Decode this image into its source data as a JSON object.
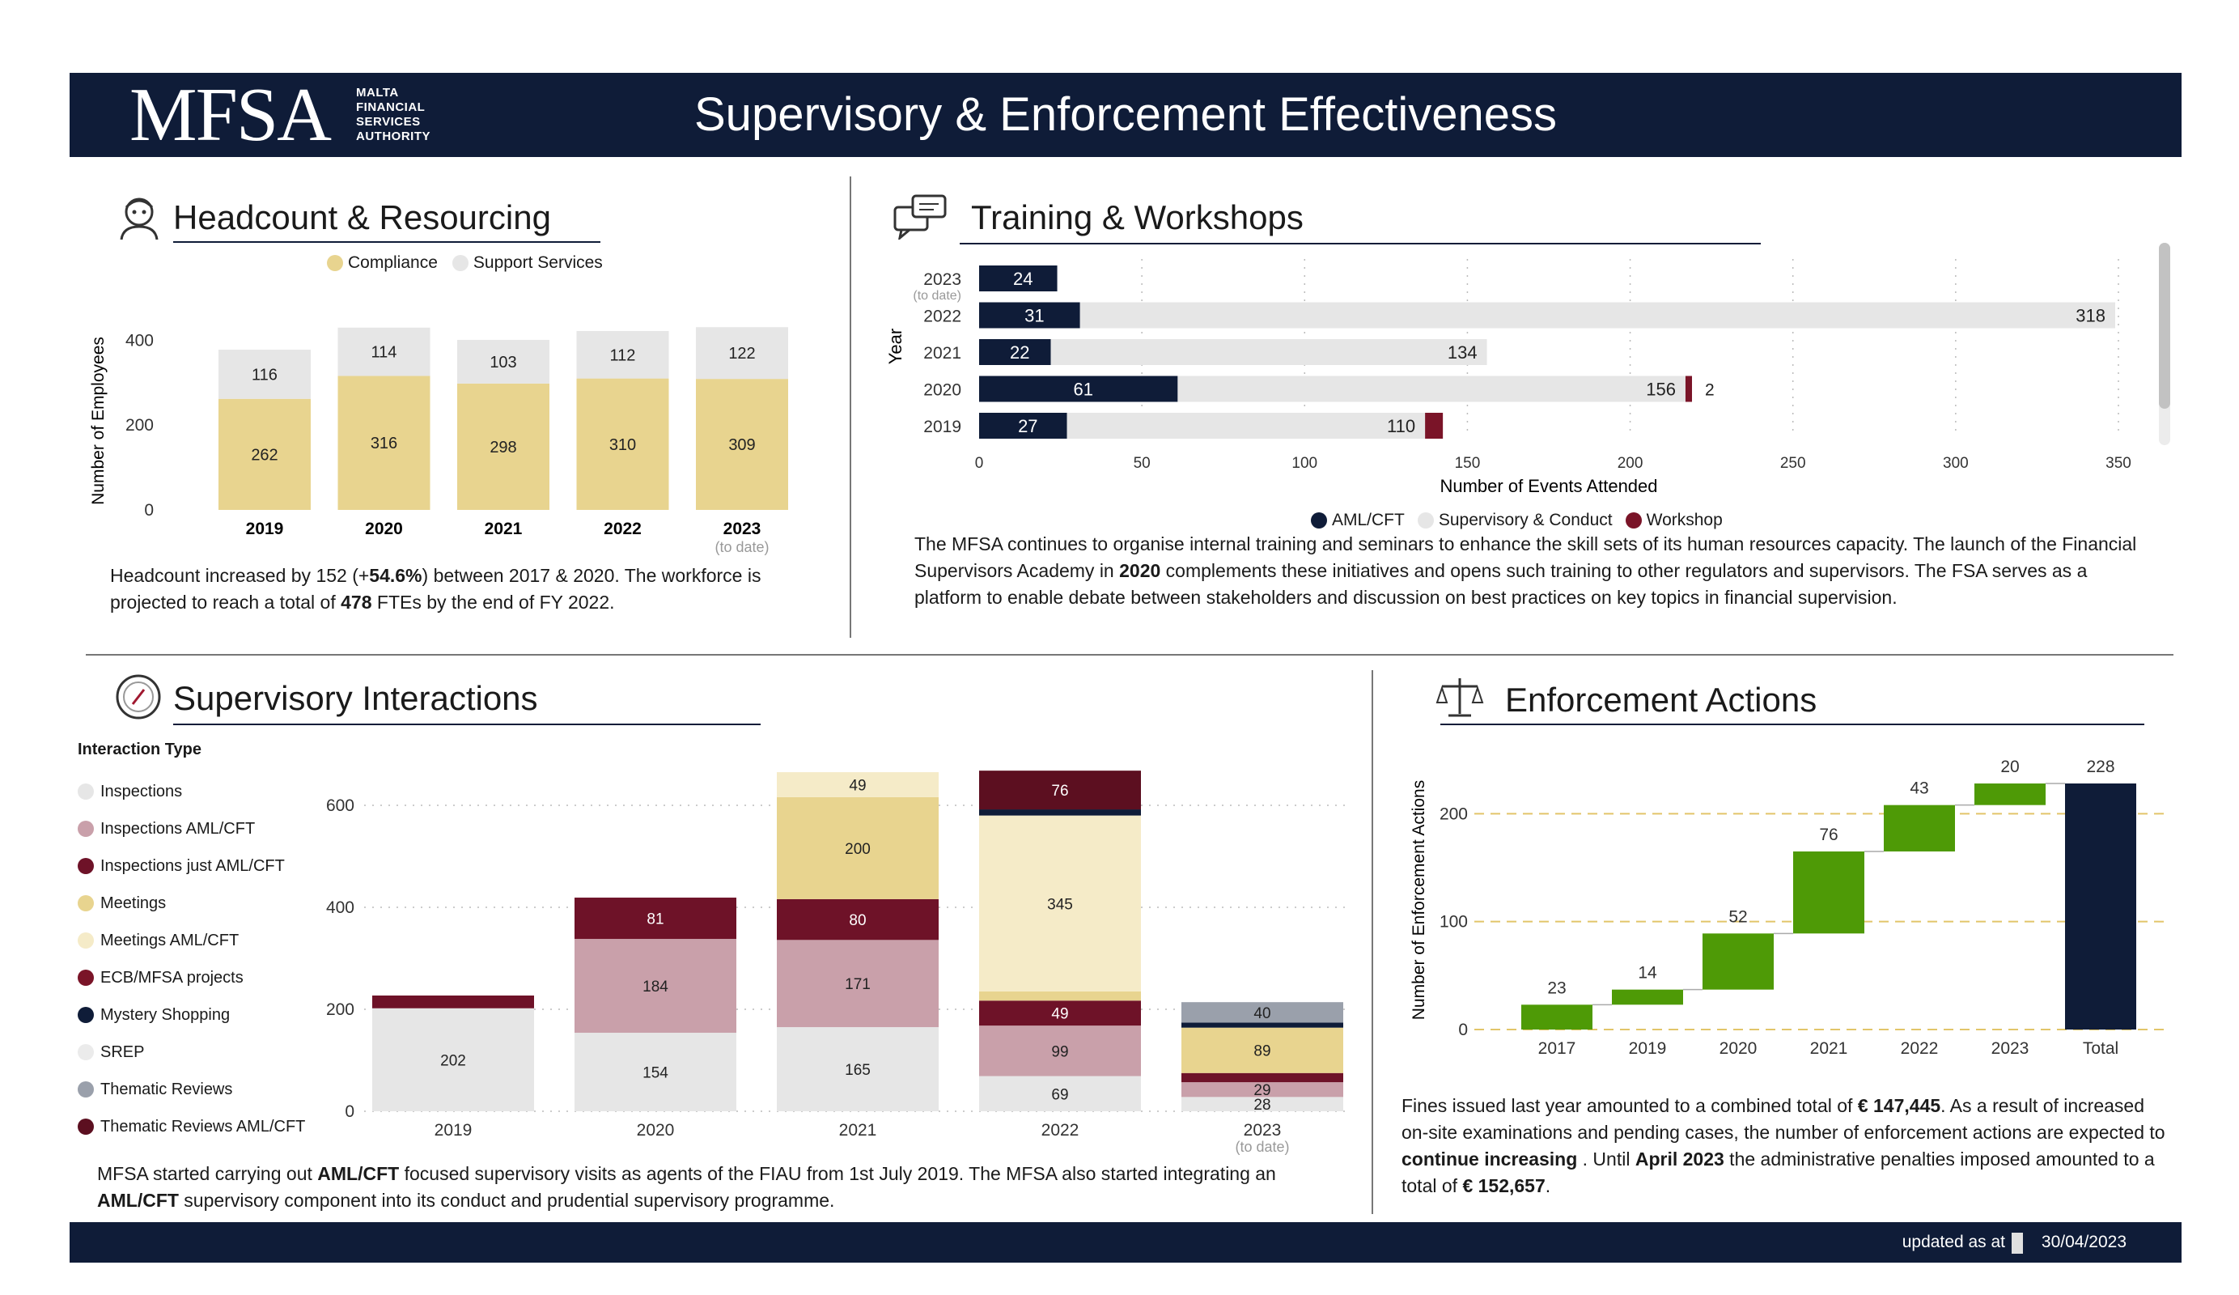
{
  "header": {
    "logo": "MFSA",
    "logo_sub": [
      "MALTA",
      "FINANCIAL",
      "SERVICES",
      "AUTHORITY"
    ],
    "title": "Supervisory & Enforcement Effectiveness"
  },
  "footer": {
    "updated_label": "updated as at",
    "updated_date": "30/04/2023"
  },
  "headcount": {
    "title": "Headcount & Resourcing",
    "paragraph": [
      {
        "t": "Headcount increased by 152 (+"
      },
      {
        "t": "54.6%",
        "b": true
      },
      {
        "t": ") between 2017 & 2020. The workforce is projected to reach a total of "
      },
      {
        "t": "478",
        "b": true
      },
      {
        "t": " FTEs by the end of FY 2022."
      }
    ]
  },
  "training": {
    "title": "Training & Workshops",
    "paragraph": [
      {
        "t": "The MFSA continues to organise internal training and seminars to enhance the skill sets of its human resources capacity. The launch of the Financial Supervisors Academy in "
      },
      {
        "t": "2020",
        "b": true
      },
      {
        "t": " complements these initiatives and opens such training to other regulators and supervisors. The FSA serves as a platform to enable debate between stakeholders and discussion on best practices on key topics in financial supervision."
      }
    ]
  },
  "interactions": {
    "title": "Supervisory Interactions",
    "legend_title": "Interaction Type",
    "paragraph": [
      {
        "t": "MFSA started carrying out "
      },
      {
        "t": "AML/CFT",
        "b": true
      },
      {
        "t": " focused supervisory visits as agents of the FIAU from 1st July 2019. The MFSA also started integrating an "
      },
      {
        "t": "AML/CFT",
        "b": true
      },
      {
        "t": " supervisory component into its conduct and prudential supervisory programme."
      }
    ]
  },
  "enforcement": {
    "title": "Enforcement Actions",
    "paragraph": [
      {
        "t": "Fines issued last year amounted to a combined total of "
      },
      {
        "t": "€ 147,445",
        "b": true
      },
      {
        "t": ". As a result of increased on-site examinations and pending cases, the number of enforcement actions are expected to "
      },
      {
        "t": "continue increasing",
        "b": true
      },
      {
        "t": " . Until "
      },
      {
        "t": "April 2023",
        "b": true
      },
      {
        "t": " the administrative penalties imposed amounted to a total of "
      },
      {
        "t": "€ 152,657",
        "b": true
      },
      {
        "t": "."
      }
    ]
  },
  "chart_data": [
    {
      "id": "headcount",
      "type": "bar",
      "stacked": true,
      "categories": [
        "2019",
        "2020",
        "2021",
        "2022",
        "2023"
      ],
      "category_note": {
        "2023": "(to date)"
      },
      "series": [
        {
          "name": "Compliance",
          "color": "#e8d48f",
          "values": [
            262,
            316,
            298,
            310,
            309
          ]
        },
        {
          "name": "Support Services",
          "color": "#e6e6e6",
          "values": [
            116,
            114,
            103,
            112,
            122
          ]
        }
      ],
      "ylabel": "Number of Employees",
      "yticks": [
        0,
        200,
        400
      ],
      "ylim": [
        0,
        420
      ],
      "legend": "top"
    },
    {
      "id": "training",
      "type": "bar",
      "orientation": "horizontal",
      "categories": [
        "2023",
        "2022",
        "2021",
        "2020",
        "2019"
      ],
      "category_note": {
        "2023": "(to date)"
      },
      "series": [
        {
          "name": "AML/CFT",
          "color": "#0f1c38",
          "values": [
            24,
            31,
            22,
            61,
            27
          ]
        },
        {
          "name": "Supervisory & Conduct",
          "color": "#e6e6e6",
          "values": [
            null,
            318,
            134,
            156,
            110
          ]
        },
        {
          "name": "Workshop",
          "color": "#7a1428",
          "values": [
            null,
            null,
            null,
            2,
            null
          ]
        }
      ],
      "xlabel": "Number of Events Attended",
      "ylabel": "Year",
      "xticks": [
        0,
        50,
        100,
        150,
        200,
        250,
        300,
        350
      ],
      "xlim": [
        0,
        350
      ],
      "legend": "bottom"
    },
    {
      "id": "interactions",
      "type": "bar",
      "stacked": true,
      "categories": [
        "2019",
        "2020",
        "2021",
        "2022",
        "2023"
      ],
      "category_note": {
        "2023": "(to date)"
      },
      "series": [
        {
          "name": "Inspections",
          "color": "#e6e6e6",
          "values": [
            202,
            154,
            165,
            69,
            28
          ]
        },
        {
          "name": "Inspections  AML/CFT",
          "color": "#c9a0aa",
          "values": [
            null,
            184,
            171,
            99,
            29
          ]
        },
        {
          "name": "Inspections just AML/CFT",
          "color": "#6e1228",
          "values": [
            25,
            81,
            80,
            49,
            18
          ]
        },
        {
          "name": "Meetings",
          "color": "#e8d48f",
          "values": [
            null,
            null,
            200,
            18,
            89
          ]
        },
        {
          "name": "Meetings  AML/CFT",
          "color": "#f5ebc8",
          "values": [
            null,
            null,
            49,
            345,
            null
          ]
        },
        {
          "name": "ECB/MFSA projects",
          "color": "#7a1428",
          "values": [
            null,
            null,
            null,
            null,
            null
          ]
        },
        {
          "name": "Mystery Shopping",
          "color": "#0f1c38",
          "values": [
            null,
            null,
            null,
            12,
            10
          ]
        },
        {
          "name": "SREP",
          "color": "#ebebeb",
          "values": [
            null,
            null,
            null,
            null,
            null
          ]
        },
        {
          "name": "Thematic Reviews",
          "color": "#9aa0ab",
          "values": [
            null,
            null,
            null,
            null,
            40
          ]
        },
        {
          "name": "Thematic Reviews    AML/CFT",
          "color": "#5c0f20",
          "values": [
            null,
            null,
            null,
            76,
            null
          ]
        }
      ],
      "yticks": [
        0,
        200,
        400,
        600
      ],
      "ylim": [
        0,
        680
      ],
      "legend": "left"
    },
    {
      "id": "enforcement",
      "type": "waterfall",
      "categories": [
        "2017",
        "2019",
        "2020",
        "2021",
        "2022",
        "2023",
        "Total"
      ],
      "values": [
        23,
        14,
        52,
        76,
        43,
        20,
        228
      ],
      "colors": {
        "increase": "#4e9a06",
        "total": "#0f1c38"
      },
      "ylabel": "Number of Enforcement Actions",
      "yticks": [
        0,
        100,
        200
      ],
      "ylim": [
        0,
        240
      ]
    }
  ]
}
